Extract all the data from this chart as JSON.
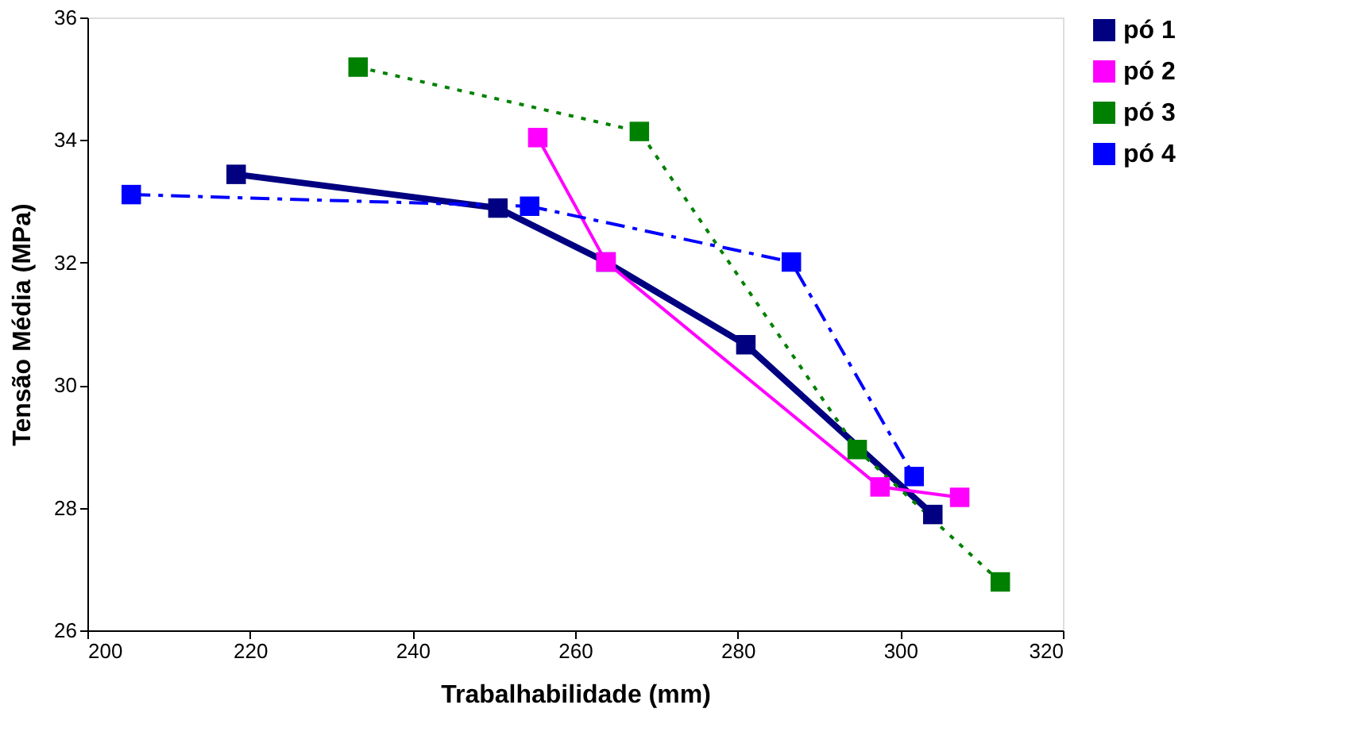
{
  "chart_data": {
    "type": "line",
    "xlabel": "Trabalhabilidade (mm)",
    "ylabel": "Tensão Média (MPa)",
    "xlim": [
      200,
      320
    ],
    "xticks": [
      200,
      220,
      240,
      260,
      280,
      300,
      320
    ],
    "ylim": [
      26,
      36
    ],
    "yticks": [
      26,
      28,
      30,
      32,
      34,
      36
    ],
    "grid": false,
    "legend": "right",
    "marker": "square",
    "series": [
      {
        "name": "pó 1",
        "color": "#000080",
        "line_style": "solid",
        "x": [
          218.3,
          250.5,
          263.8,
          281.0,
          304.0
        ],
        "values": [
          33.44,
          32.89,
          32.01,
          30.66,
          27.89
        ]
      },
      {
        "name": "pó 2",
        "color": "#ff00ff",
        "line_style": "solid",
        "x": [
          255.4,
          263.8,
          297.5,
          307.3
        ],
        "values": [
          34.04,
          32.01,
          28.34,
          28.17
        ]
      },
      {
        "name": "pó 3",
        "color": "#008000",
        "line_style": "dotted",
        "x": [
          233.3,
          267.9,
          294.7,
          312.3
        ],
        "values": [
          35.19,
          34.14,
          28.95,
          26.79
        ]
      },
      {
        "name": "pó 4",
        "color": "#0000ff",
        "line_style": "dashed",
        "x": [
          205.4,
          254.4,
          286.6,
          301.7
        ],
        "values": [
          33.11,
          32.92,
          32.01,
          28.51
        ]
      }
    ]
  }
}
